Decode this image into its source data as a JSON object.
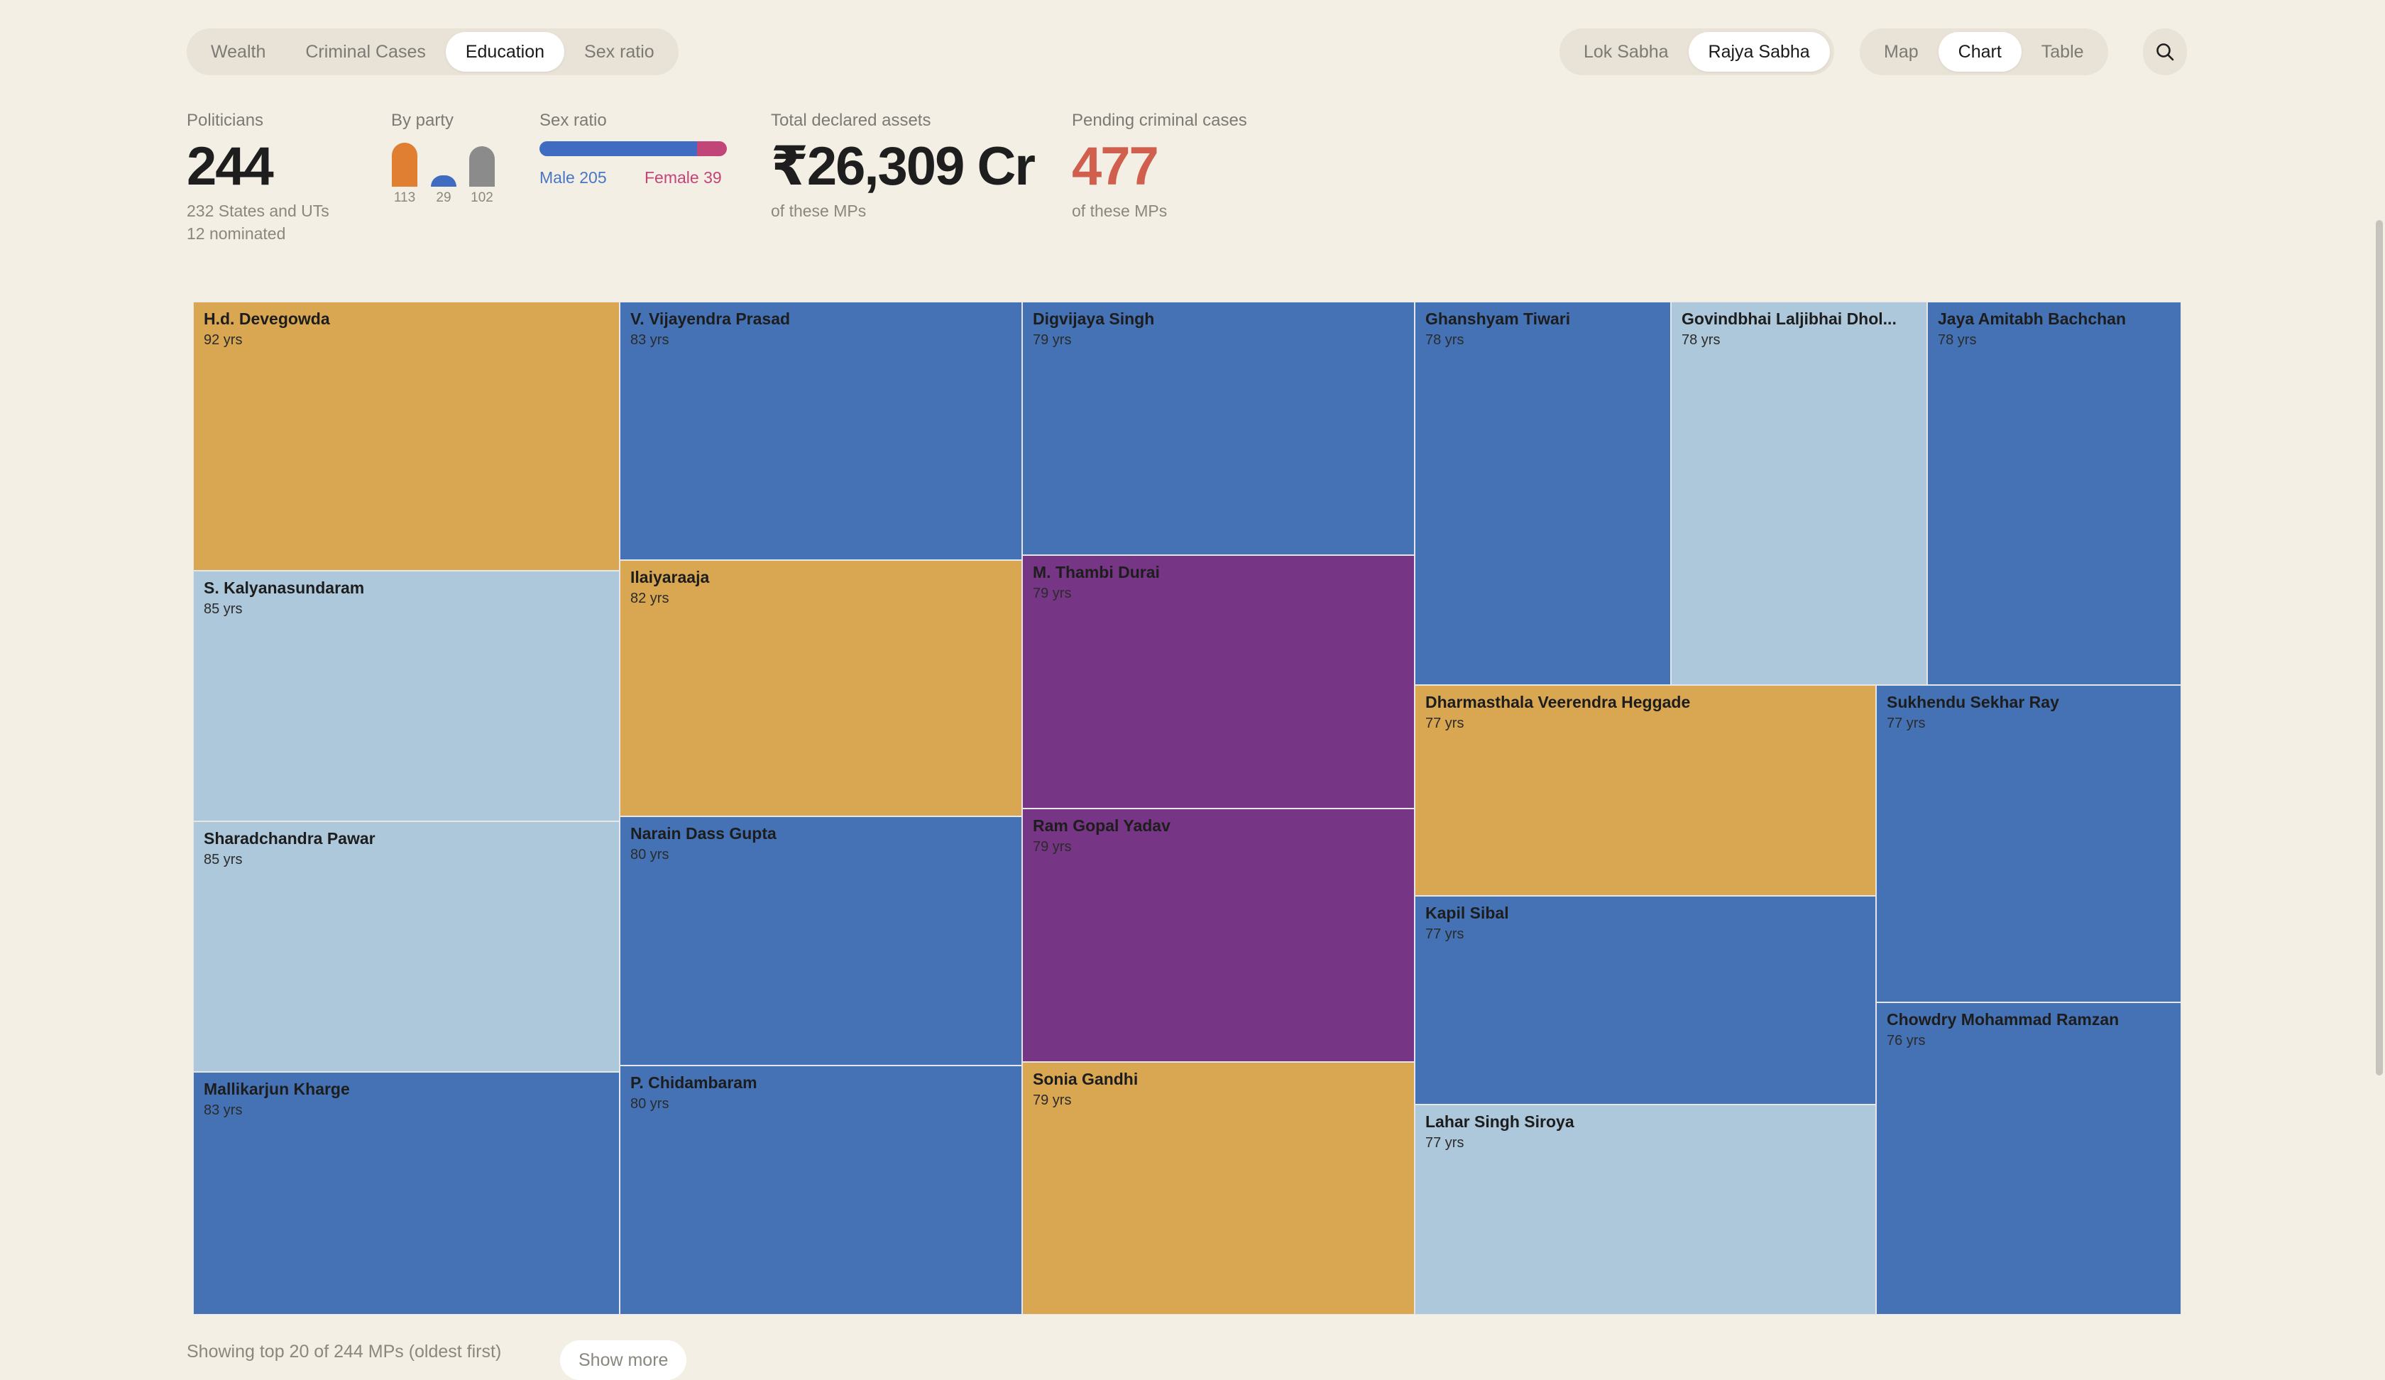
{
  "nav": {
    "metric_tabs": [
      "Wealth",
      "Criminal Cases",
      "Education",
      "Sex ratio"
    ],
    "house_tabs": [
      "Lok Sabha",
      "Rajya Sabha"
    ],
    "view_tabs": [
      "Map",
      "Chart",
      "Table"
    ],
    "search_icon": "search-icon"
  },
  "stats": {
    "politicians": {
      "label": "Politicians",
      "value": "244",
      "sub1": "232 States and UTs",
      "sub2": "12 nominated"
    },
    "by_party": {
      "label": "By party",
      "counts": [
        "113",
        "29",
        "102"
      ],
      "colors": [
        "#e07f31",
        "#3f6cc1",
        "#8b8b8b"
      ]
    },
    "sex_ratio": {
      "label": "Sex ratio",
      "male": "Male 205",
      "female": "Female 39",
      "male_count": 205,
      "female_count": 39,
      "male_color": "#3f6cc1",
      "female_color": "#c2457a"
    },
    "assets": {
      "label": "Total declared assets",
      "value": "₹26,309 Cr",
      "sub": "of these MPs"
    },
    "criminal": {
      "label": "Pending criminal cases",
      "value": "477",
      "sub": "of these MPs",
      "color": "#d15f4e"
    }
  },
  "treemap": [
    {
      "name": "H.d. Devegowda",
      "age": "92 yrs"
    },
    {
      "name": "S. Kalyanasundaram",
      "age": "85 yrs"
    },
    {
      "name": "Sharadchandra Pawar",
      "age": "85 yrs"
    },
    {
      "name": "Mallikarjun Kharge",
      "age": "83 yrs"
    },
    {
      "name": "V. Vijayendra Prasad",
      "age": "83 yrs"
    },
    {
      "name": "Ilaiyaraaja",
      "age": "82 yrs"
    },
    {
      "name": "Narain Dass Gupta",
      "age": "80 yrs"
    },
    {
      "name": "P. Chidambaram",
      "age": "80 yrs"
    },
    {
      "name": "Digvijaya Singh",
      "age": "79 yrs"
    },
    {
      "name": "M. Thambi Durai",
      "age": "79 yrs"
    },
    {
      "name": "Ram Gopal Yadav",
      "age": "79 yrs"
    },
    {
      "name": "Sonia Gandhi",
      "age": "79 yrs"
    },
    {
      "name": "Ghanshyam Tiwari",
      "age": "78 yrs"
    },
    {
      "name": "Govindbhai Laljibhai Dhol...",
      "age": "78 yrs"
    },
    {
      "name": "Jaya Amitabh Bachchan",
      "age": "78 yrs"
    },
    {
      "name": "Dharmasthala Veerendra Heggade",
      "age": "77 yrs"
    },
    {
      "name": "Kapil Sibal",
      "age": "77 yrs"
    },
    {
      "name": "Lahar Singh Siroya",
      "age": "77 yrs"
    },
    {
      "name": "Sukhendu Sekhar Ray",
      "age": "77 yrs"
    },
    {
      "name": "Chowdry Mohammad Ramzan",
      "age": "76 yrs"
    }
  ],
  "footer": {
    "text": "Showing top 20 of 244 MPs (oldest first)",
    "button": "Show more"
  }
}
